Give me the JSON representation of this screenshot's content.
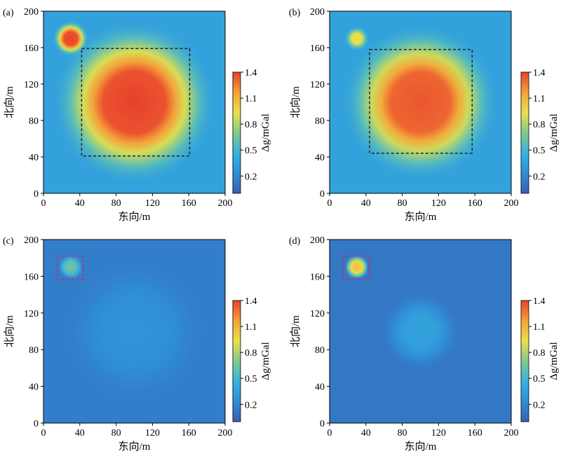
{
  "chart_data": [
    {
      "type": "heatmap",
      "panel_label": "(a)",
      "xlabel": "东向/m",
      "ylabel": "北向/m",
      "xlim": [
        0,
        200
      ],
      "ylim": [
        0,
        200
      ],
      "xticks": [
        "0",
        "40",
        "80",
        "120",
        "160",
        "200"
      ],
      "yticks": [
        "0",
        "40",
        "80",
        "120",
        "160",
        "200"
      ],
      "colorbar": {
        "label": "Δg/mGal",
        "range": [
          0,
          1.4
        ],
        "ticks": [
          "0.2",
          "0.5",
          "0.8",
          "1.1",
          "1.4"
        ]
      },
      "sources": [
        {
          "shape": "circle",
          "cx": 100,
          "cy": 100,
          "radius": 45,
          "peak": 1.4
        },
        {
          "shape": "circle",
          "cx": 30,
          "cy": 170,
          "radius": 10,
          "peak": 1.4
        }
      ],
      "background": 0.35,
      "boxes": [
        {
          "x0": 42,
          "x1": 161,
          "y0": 41,
          "y1": 159,
          "color": "#222222"
        }
      ]
    },
    {
      "type": "heatmap",
      "panel_label": "(b)",
      "xlabel": "东向/m",
      "ylabel": "北向/m",
      "xlim": [
        0,
        200
      ],
      "ylim": [
        0,
        200
      ],
      "xticks": [
        "0",
        "40",
        "80",
        "120",
        "160",
        "200"
      ],
      "yticks": [
        "0",
        "40",
        "80",
        "120",
        "160",
        "200"
      ],
      "colorbar": {
        "label": "Δg/mGal",
        "range": [
          0,
          1.4
        ],
        "ticks": [
          "0.2",
          "0.5",
          "0.8",
          "1.1",
          "1.4"
        ]
      },
      "sources": [
        {
          "shape": "circle",
          "cx": 100,
          "cy": 100,
          "radius": 43,
          "peak": 1.35
        },
        {
          "shape": "circle",
          "cx": 30,
          "cy": 170,
          "radius": 7,
          "peak": 0.95
        }
      ],
      "background": 0.35,
      "boxes": [
        {
          "x0": 44,
          "x1": 157,
          "y0": 44,
          "y1": 158,
          "color": "#222222"
        }
      ]
    },
    {
      "type": "heatmap",
      "panel_label": "(c)",
      "xlabel": "东向/m",
      "ylabel": "北向/m",
      "xlim": [
        0,
        200
      ],
      "ylim": [
        0,
        200
      ],
      "xticks": [
        "0",
        "40",
        "80",
        "120",
        "160",
        "200"
      ],
      "yticks": [
        "0",
        "40",
        "80",
        "120",
        "160",
        "200"
      ],
      "colorbar": {
        "label": "Δg/mGal",
        "range": [
          0,
          1.4
        ],
        "ticks": [
          "0.2",
          "0.5",
          "0.8",
          "1.1",
          "1.4"
        ]
      },
      "sources": [
        {
          "shape": "square",
          "cx": 30,
          "cy": 170,
          "radius": 9,
          "peak": 0.65
        },
        {
          "shape": "circle",
          "cx": 100,
          "cy": 100,
          "radius": 40,
          "peak": 0.25
        }
      ],
      "background": 0.15,
      "boxes": [
        {
          "x0": 15,
          "x1": 44,
          "y0": 157,
          "y1": 182,
          "color": "#c0306a"
        }
      ]
    },
    {
      "type": "heatmap",
      "panel_label": "(d)",
      "xlabel": "东向/m",
      "ylabel": "北向/m",
      "xlim": [
        0,
        200
      ],
      "ylim": [
        0,
        200
      ],
      "xticks": [
        "0",
        "40",
        "80",
        "120",
        "160",
        "200"
      ],
      "yticks": [
        "0",
        "40",
        "80",
        "120",
        "160",
        "200"
      ],
      "colorbar": {
        "label": "Δg/mGal",
        "range": [
          0,
          1.4
        ],
        "ticks": [
          "0.2",
          "0.5",
          "0.8",
          "1.1",
          "1.4"
        ]
      },
      "sources": [
        {
          "shape": "square",
          "cx": 30,
          "cy": 170,
          "radius": 9,
          "peak": 1.1
        },
        {
          "shape": "circle",
          "cx": 100,
          "cy": 100,
          "radius": 22,
          "peak": 0.35
        }
      ],
      "background": 0.12,
      "boxes": [
        {
          "x0": 15,
          "x1": 44,
          "y0": 157,
          "y1": 182,
          "color": "#c0306a"
        }
      ]
    }
  ],
  "colors": {
    "colormap": [
      "#3a5fb0",
      "#2f8fd8",
      "#36b4e0",
      "#84c98a",
      "#e8e14a",
      "#f4a23a",
      "#e8412c"
    ]
  }
}
